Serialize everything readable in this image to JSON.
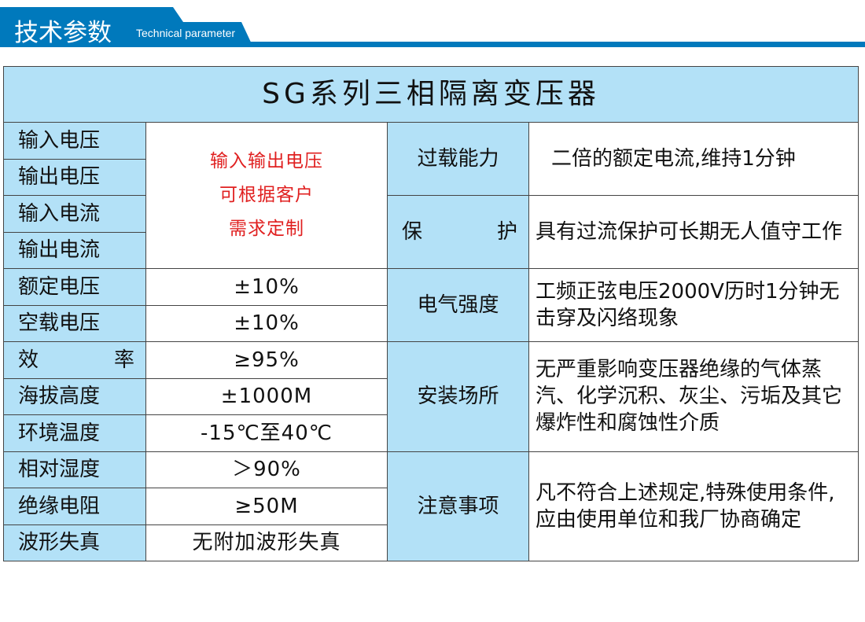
{
  "header": {
    "title": "技术参数",
    "subtitle": "Technical parameter",
    "color": "#0079bc"
  },
  "table": {
    "title": "SG系列三相隔离变压器",
    "left": [
      {
        "label": "输入电压"
      },
      {
        "label": "输出电压"
      },
      {
        "label": "输入电流"
      },
      {
        "label": "输出电流"
      },
      {
        "label": "额定电压",
        "value": "±10%"
      },
      {
        "label": "空载电压",
        "value": "±10%"
      },
      {
        "label": "效 率",
        "value": "≥95%"
      },
      {
        "label": "海拔高度",
        "value": "±1000M"
      },
      {
        "label": "环境温度",
        "value": "-15℃至40℃"
      },
      {
        "label": "相对湿度",
        "value": "＞90%"
      },
      {
        "label": "绝缘电阻",
        "value": "≥50M"
      },
      {
        "label": "波形失真",
        "value": "无附加波形失真"
      }
    ],
    "merged_value": [
      "输入输出电压",
      "可根据客户",
      "需求定制"
    ],
    "right": [
      {
        "label": "过载能力",
        "value": "二倍的额定电流,维持1分钟"
      },
      {
        "label": "保 护",
        "value": "具有过流保护可长期无人值守工作"
      },
      {
        "label": "电气强度",
        "value": "工频正弦电压2000V历时1分钟无击穿及闪络现象"
      },
      {
        "label": "安装场所",
        "value": "无严重影响变压器绝缘的气体蒸汽、化学沉积、灰尘、污垢及其它爆炸性和腐蚀性介质"
      },
      {
        "label": "注意事项",
        "value": "凡不符合上述规定,特殊使用条件,应由使用单位和我厂协商确定"
      }
    ],
    "header_bg": "#b3e1f7"
  }
}
